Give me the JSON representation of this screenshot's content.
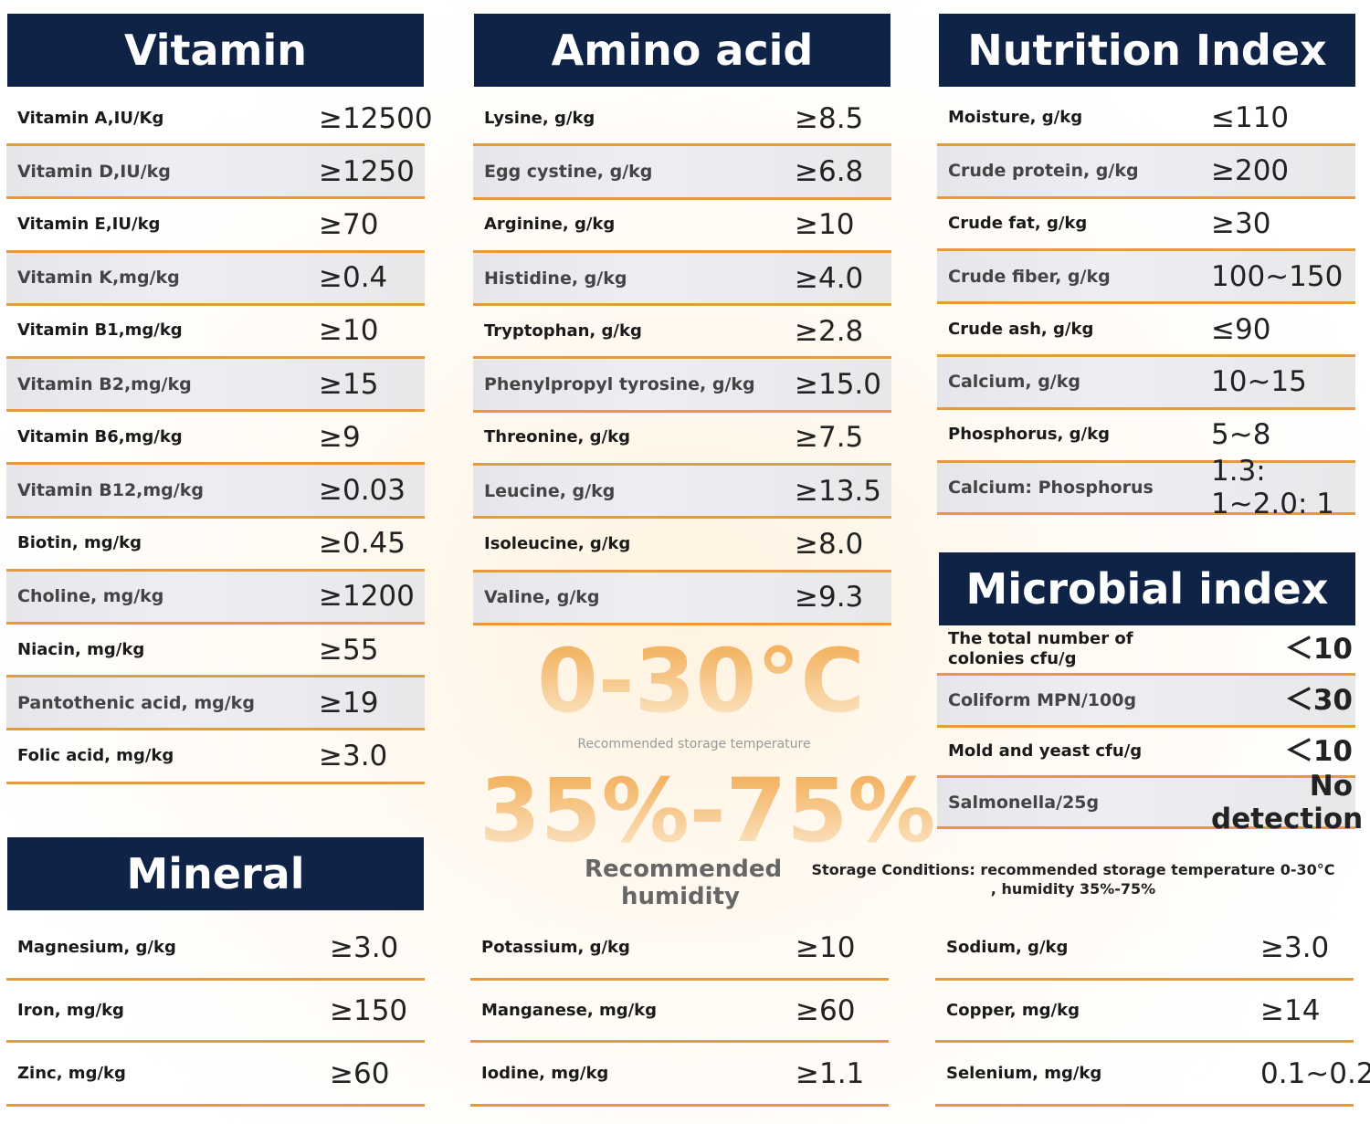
{
  "vitamin": {
    "title": "Vitamin",
    "rows": [
      [
        "Vitamin A,IU/Kg",
        "≥12500"
      ],
      [
        "Vitamin D,IU/kg",
        "≥1250"
      ],
      [
        "Vitamin E,IU/kg",
        "≥70"
      ],
      [
        "Vitamin K,mg/kg",
        "≥0.4"
      ],
      [
        "Vitamin B1,mg/kg",
        "≥10"
      ],
      [
        "Vitamin B2,mg/kg",
        "≥15"
      ],
      [
        "Vitamin B6,mg/kg",
        "≥9"
      ],
      [
        "Vitamin B12,mg/kg",
        "≥0.03"
      ],
      [
        "Biotin, mg/kg",
        "≥0.45"
      ],
      [
        "Choline, mg/kg",
        "≥1200"
      ],
      [
        "Niacin, mg/kg",
        "≥55"
      ],
      [
        "Pantothenic acid, mg/kg",
        "≥19"
      ],
      [
        "Folic acid, mg/kg",
        "≥3.0"
      ]
    ]
  },
  "amino_acid": {
    "title": "Amino acid",
    "rows": [
      [
        "Lysine, g/kg",
        "≥8.5"
      ],
      [
        "Egg cystine, g/kg",
        "≥6.8"
      ],
      [
        "Arginine, g/kg",
        "≥10"
      ],
      [
        "Histidine, g/kg",
        "≥4.0"
      ],
      [
        "Tryptophan, g/kg",
        "≥2.8"
      ],
      [
        "Phenylpropyl tyrosine, g/kg",
        "≥15.0"
      ],
      [
        "Threonine, g/kg",
        "≥7.5"
      ],
      [
        "Leucine, g/kg",
        "≥13.5"
      ],
      [
        "Isoleucine, g/kg",
        "≥8.0"
      ],
      [
        "Valine, g/kg",
        "≥9.3"
      ]
    ]
  },
  "nutrition_index": {
    "title": "Nutrition Index",
    "rows": [
      [
        "Moisture, g/kg",
        "≤110"
      ],
      [
        "Crude protein, g/kg",
        "≥200"
      ],
      [
        "Crude fat, g/kg",
        "≥30"
      ],
      [
        "Crude fiber, g/kg",
        "100~150"
      ],
      [
        "Crude ash, g/kg",
        "≤90"
      ],
      [
        "Calcium, g/kg",
        "10~15"
      ],
      [
        "Phosphorus, g/kg",
        "5~8"
      ],
      [
        "Calcium: Phosphorus",
        "1.3: 1~2.0: 1"
      ]
    ]
  },
  "microbial_index": {
    "title": "Microbial index",
    "rows": [
      [
        "The total number of colonies cfu/g",
        "＜10"
      ],
      [
        "Coliform MPN/100g",
        "＜30"
      ],
      [
        "Mold and yeast cfu/g",
        "＜10"
      ],
      [
        "Salmonella/25g",
        "No detection"
      ]
    ]
  },
  "mineral": {
    "title": "Mineral",
    "columns": [
      [
        [
          "Magnesium, g/kg",
          "≥3.0"
        ],
        [
          "Iron, mg/kg",
          "≥150"
        ],
        [
          "Zinc, mg/kg",
          "≥60"
        ]
      ],
      [
        [
          "Potassium, g/kg",
          "≥10"
        ],
        [
          "Manganese, mg/kg",
          "≥60"
        ],
        [
          "Iodine, mg/kg",
          "≥1.1"
        ]
      ],
      [
        [
          "Sodium, g/kg",
          "≥3.0"
        ],
        [
          "Copper, mg/kg",
          "≥14"
        ],
        [
          "Selenium, mg/kg",
          "0.1~0.2"
        ]
      ]
    ]
  },
  "storage": {
    "temperature": "0-30°C",
    "temperature_caption": "Recommended storage temperature",
    "humidity": "35%-75%",
    "humidity_caption": "Recommended humidity",
    "conditions": "Storage Conditions: recommended storage temperature 0-30°C , humidity 35%-75%"
  }
}
